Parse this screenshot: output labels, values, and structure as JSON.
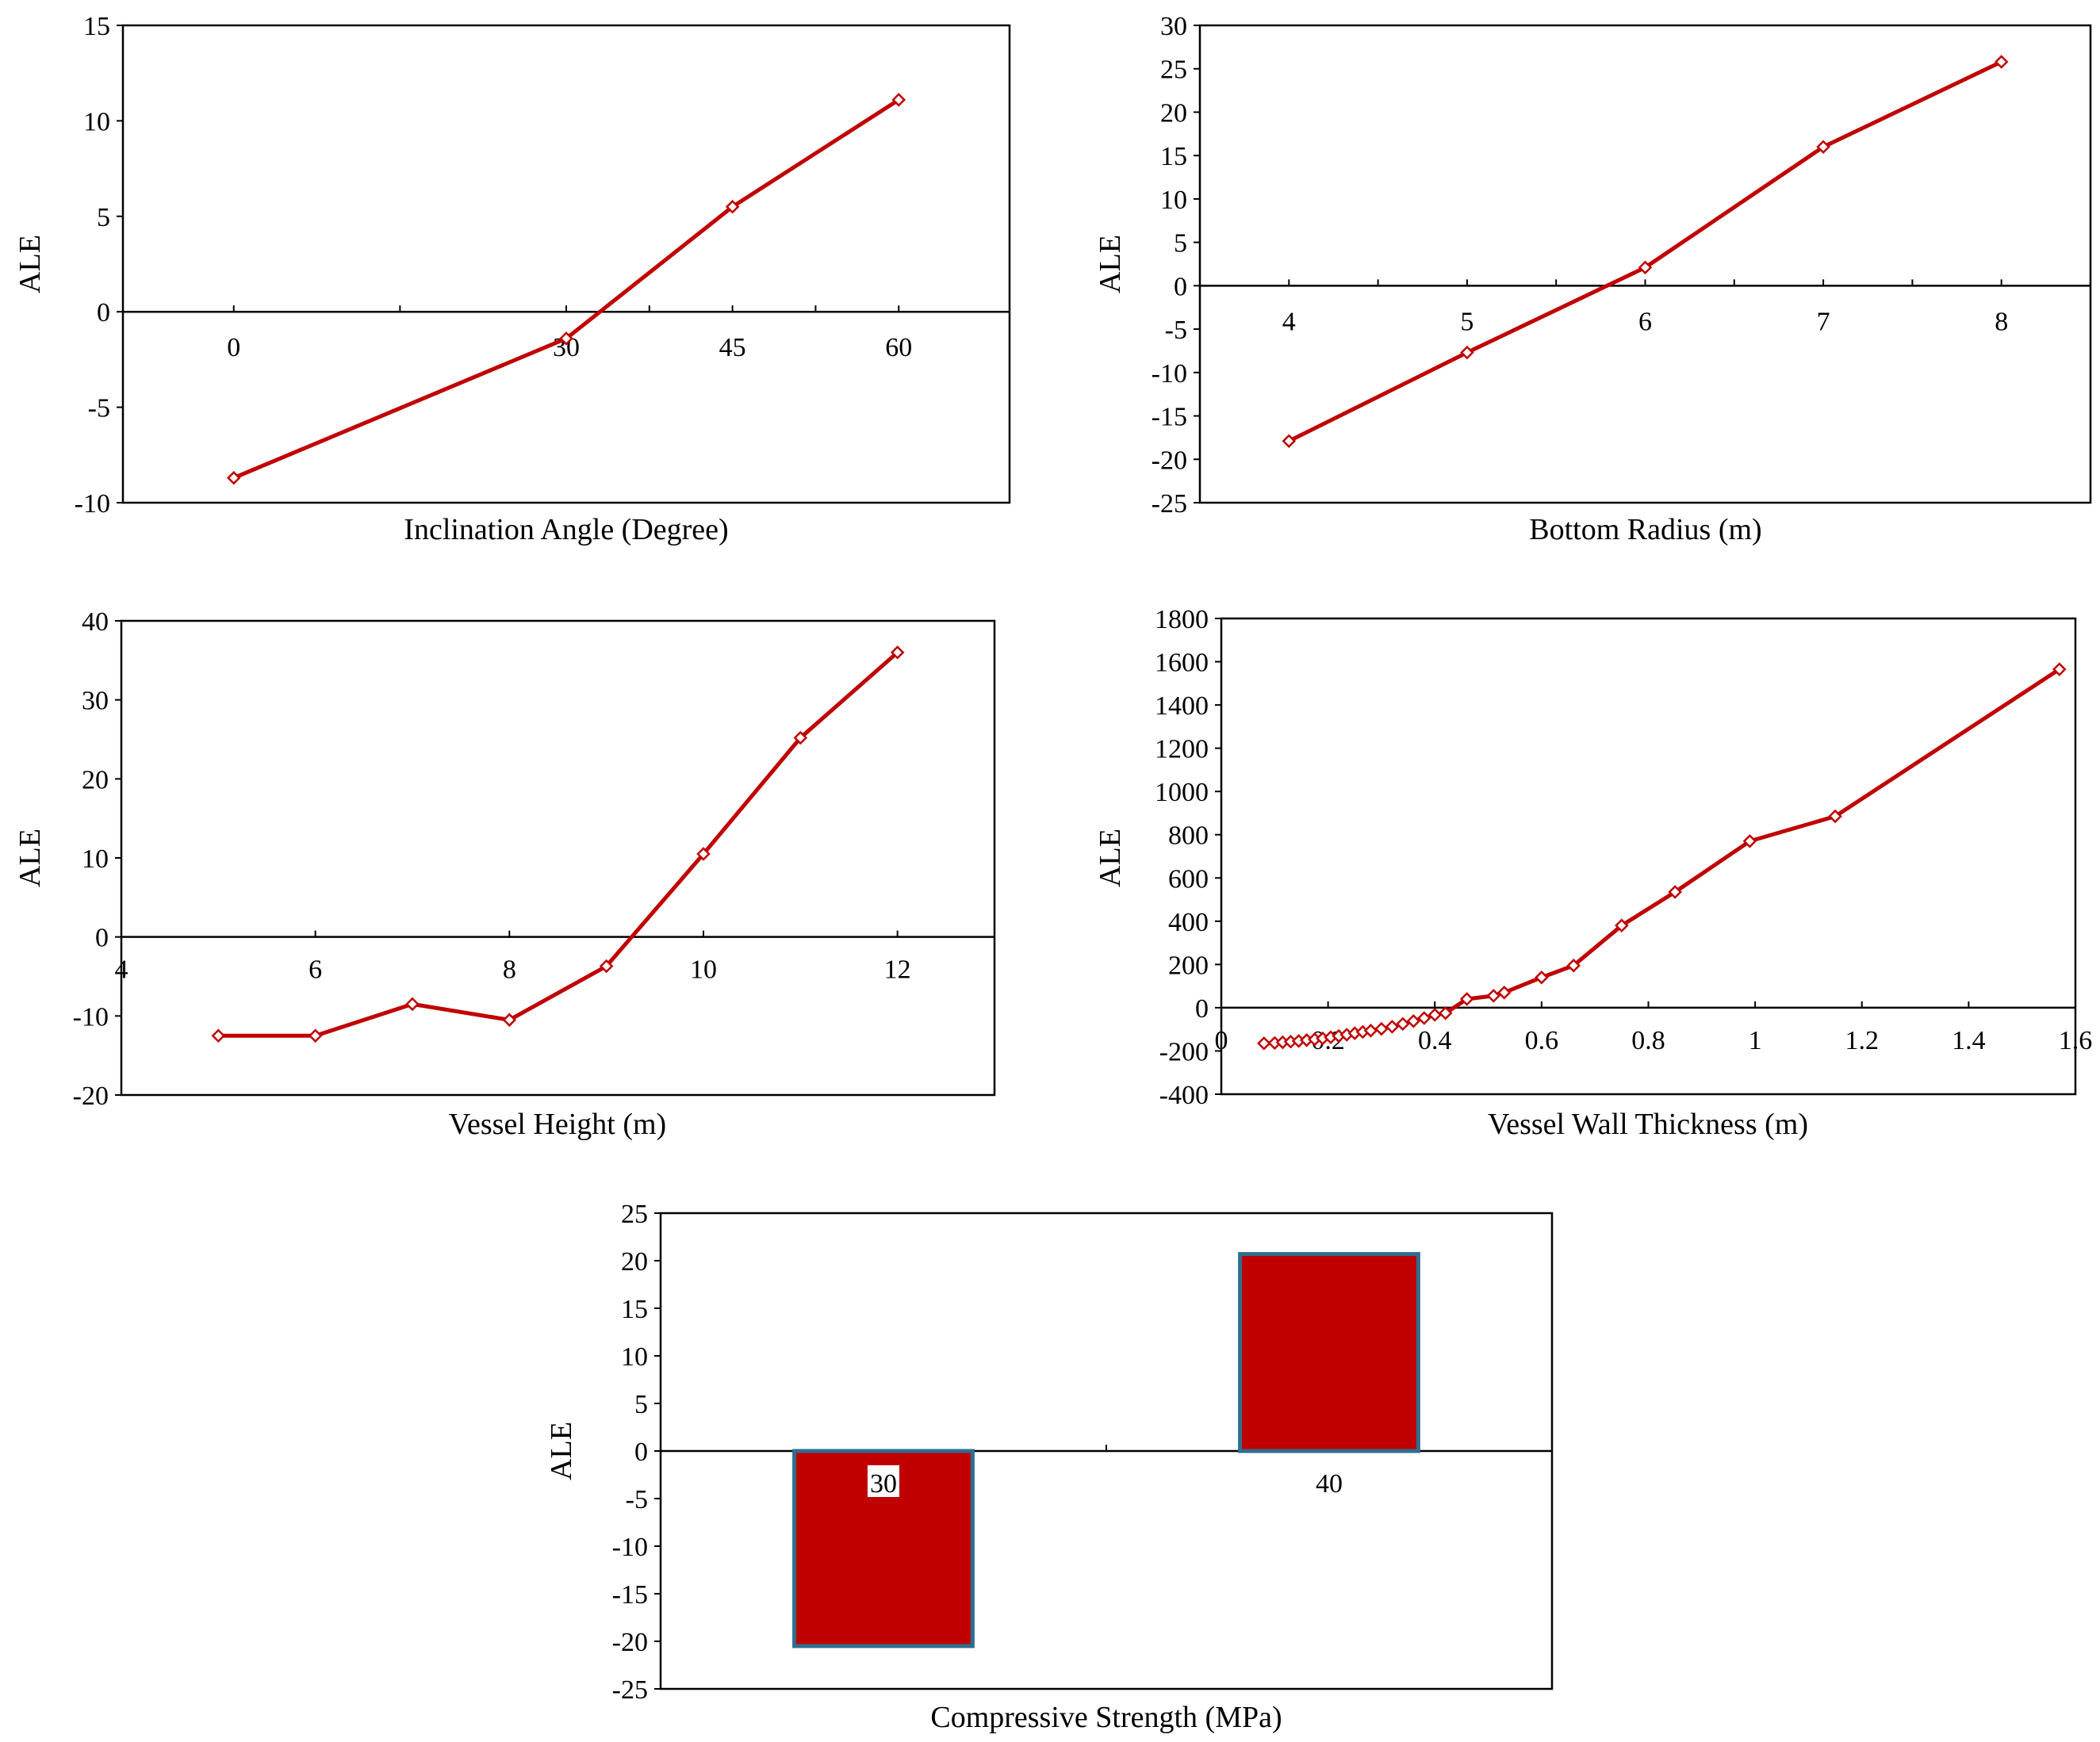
{
  "chart_data": [
    {
      "id": "inclination",
      "type": "line",
      "title": "",
      "xlabel": "Inclination Angle (Degree)",
      "ylabel": "ALE",
      "x": [
        0,
        30,
        45,
        60
      ],
      "values": [
        -8.7,
        -1.4,
        5.5,
        11.1
      ],
      "xlim": [
        -10,
        70
      ],
      "ylim": [
        -10,
        15
      ],
      "xticks": [
        0,
        30,
        45,
        60
      ],
      "xtick_labels": [
        "0",
        "30",
        "45",
        "60"
      ],
      "yticks": [
        -10,
        -5,
        0,
        5,
        10,
        15
      ],
      "ytick_labels": [
        "-10",
        "-5",
        "0",
        "5",
        "10",
        "15"
      ],
      "grid": false,
      "color": "#C00000",
      "marker": "diamond-open"
    },
    {
      "id": "radius",
      "type": "line",
      "title": "",
      "xlabel": "Bottom Radius (m)",
      "ylabel": "ALE",
      "x": [
        4,
        5,
        6,
        7,
        8
      ],
      "values": [
        -17.9,
        -7.7,
        2.1,
        16.0,
        25.8
      ],
      "xlim": [
        3.5,
        8.5
      ],
      "ylim": [
        -25,
        30
      ],
      "xticks": [
        4,
        5,
        6,
        7,
        8
      ],
      "xtick_labels": [
        "4",
        "5",
        "6",
        "7",
        "8"
      ],
      "yticks": [
        -25,
        -20,
        -15,
        -10,
        -5,
        0,
        5,
        10,
        15,
        20,
        25,
        30
      ],
      "ytick_labels": [
        "-25",
        "-20",
        "-15",
        "-10",
        "-5",
        "0",
        "5",
        "10",
        "15",
        "20",
        "25",
        "30"
      ],
      "grid": false,
      "color": "#C00000",
      "marker": "diamond-open"
    },
    {
      "id": "height",
      "type": "line",
      "title": "",
      "xlabel": "Vessel Height (m)",
      "ylabel": "ALE",
      "x": [
        5,
        6,
        7,
        8,
        9,
        10,
        11,
        12
      ],
      "values": [
        -12.5,
        -12.5,
        -8.5,
        -10.5,
        -3.7,
        10.5,
        25.2,
        36.0
      ],
      "xlim": [
        4,
        13
      ],
      "ylim": [
        -20,
        40
      ],
      "xticks": [
        4,
        6,
        8,
        10,
        12
      ],
      "xtick_labels": [
        "4",
        "6",
        "8",
        "10",
        "12"
      ],
      "yticks": [
        -20,
        -10,
        0,
        10,
        20,
        30,
        40
      ],
      "ytick_labels": [
        "-20",
        "-10",
        "0",
        "10",
        "20",
        "30",
        "40"
      ],
      "grid": false,
      "color": "#C00000",
      "marker": "diamond-open"
    },
    {
      "id": "thickness",
      "type": "line",
      "title": "",
      "xlabel": "Vessel Wall Thickness (m)",
      "ylabel": "ALE",
      "x": [
        0.08,
        0.1,
        0.115,
        0.13,
        0.145,
        0.16,
        0.175,
        0.19,
        0.205,
        0.22,
        0.235,
        0.25,
        0.265,
        0.28,
        0.3,
        0.32,
        0.34,
        0.36,
        0.38,
        0.4,
        0.42,
        0.46,
        0.51,
        0.53,
        0.6,
        0.66,
        0.75,
        0.85,
        0.99,
        1.15,
        1.57
      ],
      "values": [
        -165,
        -163,
        -160,
        -157,
        -154,
        -150,
        -146,
        -142,
        -137,
        -131,
        -125,
        -118,
        -112,
        -106,
        -98,
        -88,
        -75,
        -62,
        -48,
        -33,
        -25,
        40,
        55,
        70,
        140,
        195,
        380,
        535,
        770,
        885,
        1565
      ],
      "xlim": [
        0,
        1.6
      ],
      "ylim": [
        -400,
        1800
      ],
      "xticks": [
        0,
        0.2,
        0.4,
        0.6,
        0.8,
        1.0,
        1.2,
        1.4,
        1.6
      ],
      "xtick_labels": [
        "0",
        "0.2",
        "0.4",
        "0.6",
        "0.8",
        "1",
        "1.2",
        "1.4",
        "1.6"
      ],
      "yticks": [
        -400,
        -200,
        0,
        200,
        400,
        600,
        800,
        1000,
        1200,
        1400,
        1600,
        1800
      ],
      "ytick_labels": [
        "-400",
        "-200",
        "0",
        "200",
        "400",
        "600",
        "800",
        "1000",
        "1200",
        "1400",
        "1600",
        "1800"
      ],
      "grid": false,
      "color": "#C00000",
      "marker": "diamond-open"
    },
    {
      "id": "strength",
      "type": "bar",
      "title": "",
      "xlabel": "Compressive Strength (MPa)",
      "ylabel": "ALE",
      "categories": [
        "30",
        "40"
      ],
      "values": [
        -20.5,
        20.7
      ],
      "ylim": [
        -25,
        25
      ],
      "yticks": [
        -25,
        -20,
        -15,
        -10,
        -5,
        0,
        5,
        10,
        15,
        20,
        25
      ],
      "ytick_labels": [
        "-25",
        "-20",
        "-15",
        "-10",
        "-5",
        "0",
        "5",
        "10",
        "15",
        "20",
        "25"
      ],
      "grid": false,
      "color": "#C00000",
      "edge_color": "#2E6E8E"
    }
  ]
}
